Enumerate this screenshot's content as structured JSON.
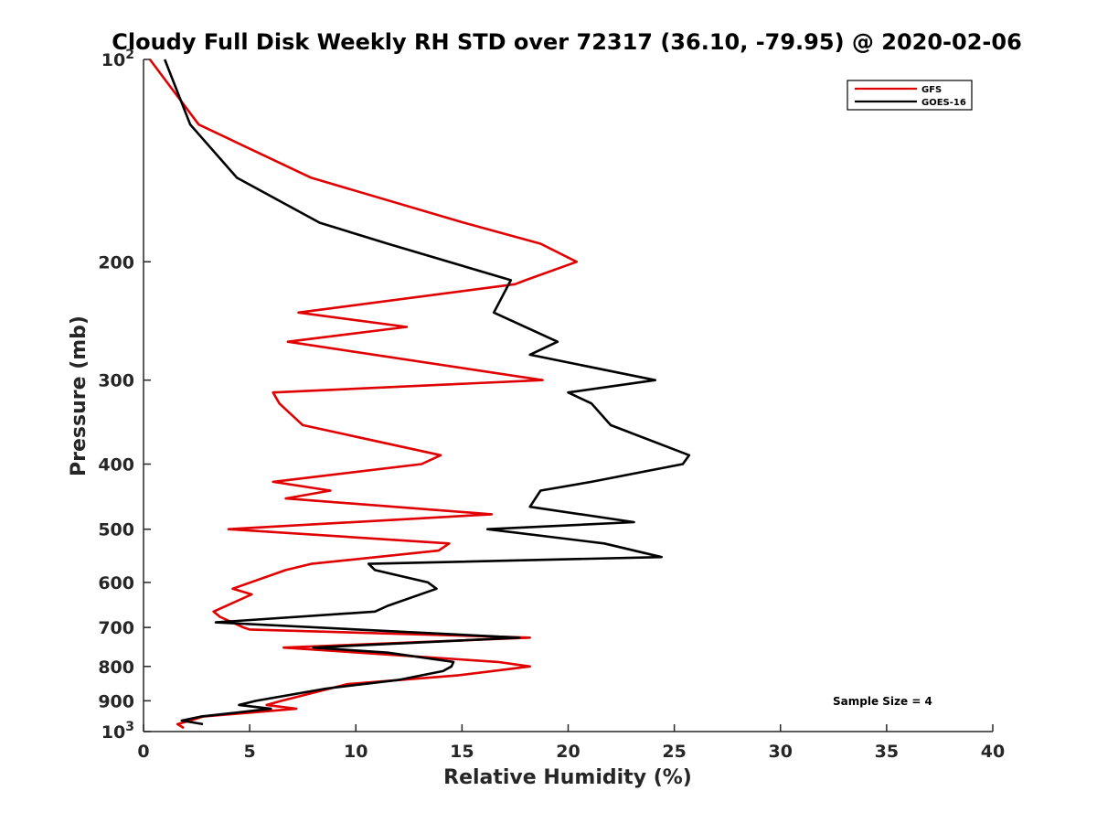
{
  "chart_data": {
    "type": "line",
    "title": "Cloudy Full Disk Weekly RH STD over 72317 (36.10, -79.95) @ 2020-02-06",
    "xlabel": "Relative Humidity (%)",
    "ylabel": "Pressure (mb)",
    "xlim": [
      0,
      40
    ],
    "ylim": [
      100,
      1000
    ],
    "y_scale": "log",
    "y_reversed": true,
    "grid": false,
    "legend_position": "top-right",
    "annotation": "Sample Size = 4",
    "x_ticks": [
      "0",
      "5",
      "10",
      "15",
      "20",
      "25",
      "30",
      "35",
      "40"
    ],
    "y_ticks": [
      {
        "value": 100,
        "label": "10",
        "sup": "2"
      },
      {
        "value": 200,
        "label": "200",
        "sup": ""
      },
      {
        "value": 300,
        "label": "300",
        "sup": ""
      },
      {
        "value": 400,
        "label": "400",
        "sup": ""
      },
      {
        "value": 500,
        "label": "500",
        "sup": ""
      },
      {
        "value": 600,
        "label": "600",
        "sup": ""
      },
      {
        "value": 700,
        "label": "700",
        "sup": ""
      },
      {
        "value": 800,
        "label": "800",
        "sup": ""
      },
      {
        "value": 900,
        "label": "900",
        "sup": ""
      },
      {
        "value": 1000,
        "label": "10",
        "sup": "3"
      }
    ],
    "series": [
      {
        "name": "GFS",
        "color": "#e00000",
        "points": [
          [
            0.3,
            100
          ],
          [
            2.6,
            125
          ],
          [
            7.9,
            150
          ],
          [
            15.1,
            175
          ],
          [
            18.7,
            188
          ],
          [
            20.4,
            200
          ],
          [
            18.0,
            213
          ],
          [
            17.5,
            216
          ],
          [
            7.3,
            238
          ],
          [
            12.4,
            250
          ],
          [
            6.8,
            263
          ],
          [
            18.8,
            300
          ],
          [
            6.1,
            313
          ],
          [
            6.4,
            325
          ],
          [
            7.5,
            350
          ],
          [
            14.0,
            388
          ],
          [
            13.1,
            400
          ],
          [
            6.1,
            425
          ],
          [
            8.8,
            438
          ],
          [
            6.7,
            450
          ],
          [
            16.4,
            475
          ],
          [
            4.0,
            500
          ],
          [
            14.4,
            525
          ],
          [
            13.9,
            538
          ],
          [
            7.9,
            563
          ],
          [
            6.7,
            575
          ],
          [
            4.2,
            613
          ],
          [
            5.1,
            625
          ],
          [
            3.3,
            663
          ],
          [
            3.6,
            675
          ],
          [
            4.7,
            700
          ],
          [
            5.0,
            705
          ],
          [
            18.2,
            725
          ],
          [
            6.6,
            750
          ],
          [
            16.7,
            788
          ],
          [
            18.2,
            800
          ],
          [
            14.8,
            825
          ],
          [
            9.6,
            850
          ],
          [
            6.5,
            900
          ],
          [
            5.8,
            913
          ],
          [
            7.2,
            925
          ],
          [
            2.8,
            950
          ],
          [
            2.2,
            963
          ],
          [
            1.6,
            975
          ],
          [
            1.9,
            988
          ]
        ]
      },
      {
        "name": "GOES-16",
        "color": "#000000",
        "points": [
          [
            1.0,
            100
          ],
          [
            2.2,
            125
          ],
          [
            4.4,
            150
          ],
          [
            8.3,
            175
          ],
          [
            11.5,
            188
          ],
          [
            17.3,
            213
          ],
          [
            16.5,
            238
          ],
          [
            19.5,
            263
          ],
          [
            18.2,
            275
          ],
          [
            24.1,
            300
          ],
          [
            20.0,
            313
          ],
          [
            21.1,
            325
          ],
          [
            22.0,
            350
          ],
          [
            25.7,
            388
          ],
          [
            25.4,
            400
          ],
          [
            21.1,
            425
          ],
          [
            18.7,
            438
          ],
          [
            18.2,
            463
          ],
          [
            23.1,
            488
          ],
          [
            16.2,
            500
          ],
          [
            21.7,
            525
          ],
          [
            24.4,
            550
          ],
          [
            10.6,
            563
          ],
          [
            10.9,
            575
          ],
          [
            13.4,
            600
          ],
          [
            13.8,
            613
          ],
          [
            11.5,
            650
          ],
          [
            10.9,
            663
          ],
          [
            3.4,
            688
          ],
          [
            17.7,
            725
          ],
          [
            8.0,
            750
          ],
          [
            11.5,
            763
          ],
          [
            14.6,
            788
          ],
          [
            14.5,
            800
          ],
          [
            14.1,
            813
          ],
          [
            12.0,
            838
          ],
          [
            8.6,
            863
          ],
          [
            5.3,
            900
          ],
          [
            4.5,
            913
          ],
          [
            6.0,
            925
          ],
          [
            2.7,
            950
          ],
          [
            1.8,
            963
          ],
          [
            2.8,
            975
          ]
        ]
      }
    ]
  }
}
